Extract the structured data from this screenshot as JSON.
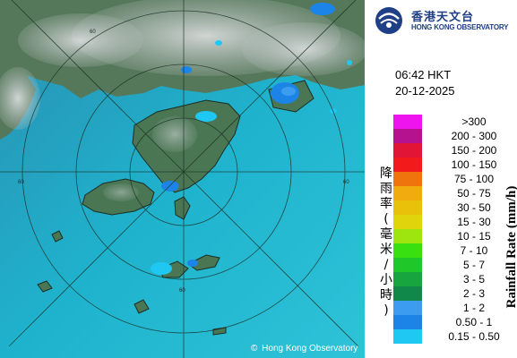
{
  "header": {
    "org_name_cn": "香港天文台",
    "org_name_en": "HONG KONG OBSERVATORY"
  },
  "timestamp": {
    "time": "06:42 HKT",
    "date": "20-12-2025"
  },
  "legend": {
    "title_en": "Rainfall Rate (mm/h)",
    "title_cn": "降雨率(毫米/小時)",
    "items": [
      {
        "label": ">300",
        "color": "#ee14ee"
      },
      {
        "label": "200 - 300",
        "color": "#b4128e"
      },
      {
        "label": "150 - 200",
        "color": "#e11535"
      },
      {
        "label": "100 - 150",
        "color": "#f21a1a"
      },
      {
        "label": "75 - 100",
        "color": "#f0740e"
      },
      {
        "label": "50 - 75",
        "color": "#f2ab0e"
      },
      {
        "label": "30 - 50",
        "color": "#e9c10a"
      },
      {
        "label": "15 - 30",
        "color": "#e0d40c"
      },
      {
        "label": "10 - 15",
        "color": "#9ee40e"
      },
      {
        "label": "7 - 10",
        "color": "#38e012"
      },
      {
        "label": "5 - 7",
        "color": "#1fc729"
      },
      {
        "label": "3 - 5",
        "color": "#17a540"
      },
      {
        "label": "2 - 3",
        "color": "#10884a"
      },
      {
        "label": "1 - 2",
        "color": "#3c9df0"
      },
      {
        "label": "0.50 - 1",
        "color": "#1c84e6"
      },
      {
        "label": "0.15 - 0.50",
        "color": "#1ec8f2"
      }
    ]
  },
  "map": {
    "range_rings": [
      "60"
    ],
    "copyright": "Hong Kong Observatory",
    "sea_color": "#1fb3cf",
    "land_color": "#4f7a56",
    "cloud_color": "#c9cfcf"
  }
}
